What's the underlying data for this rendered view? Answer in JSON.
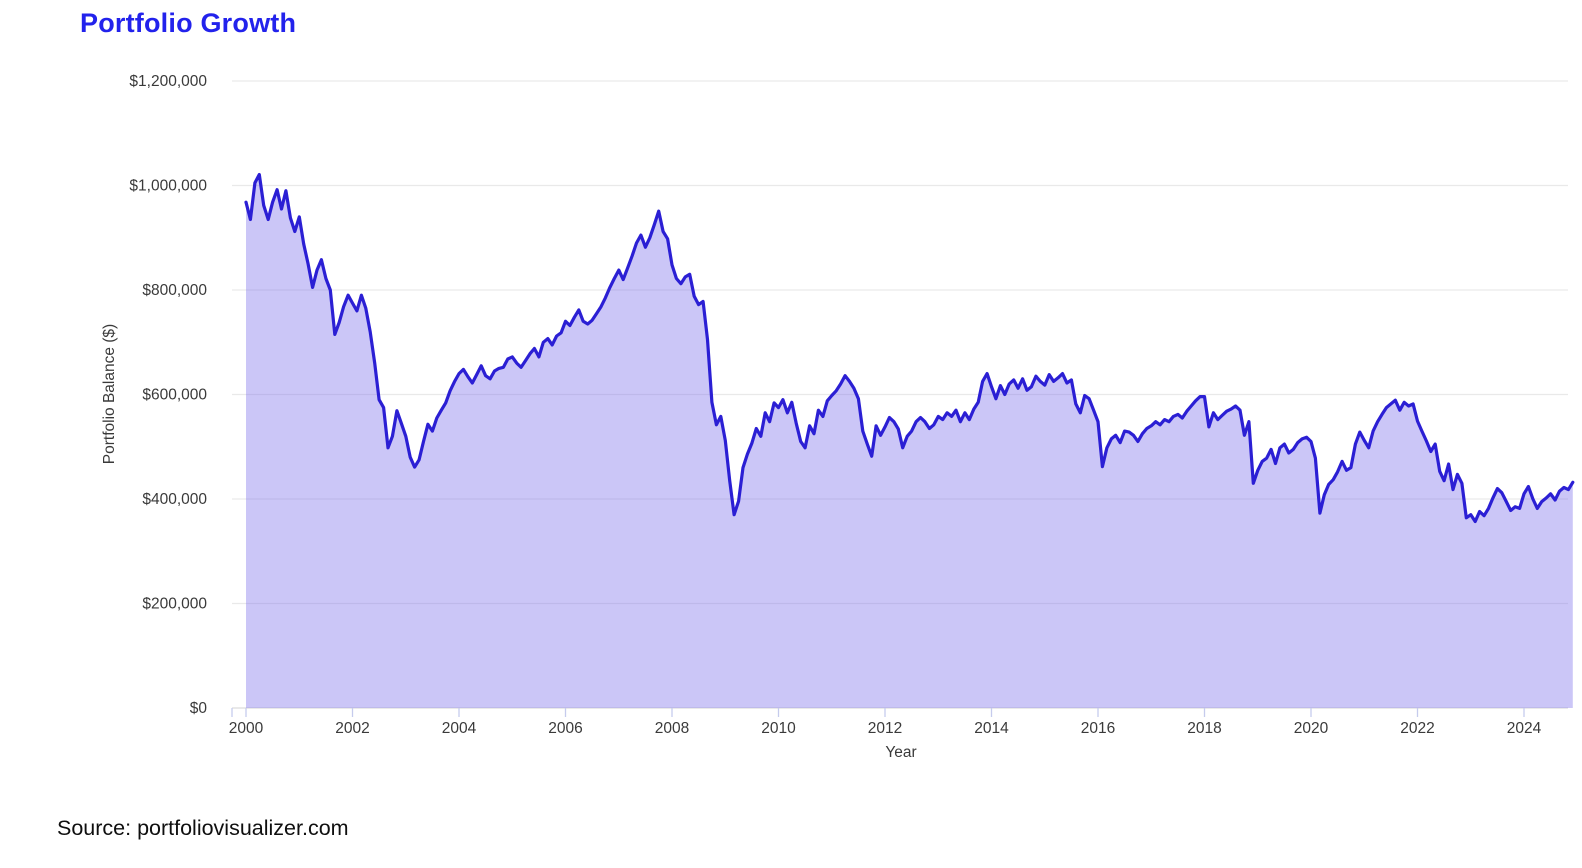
{
  "title": "Portfolio Growth",
  "source": "Source: portfoliovisualizer.com",
  "colors": {
    "title": "#2222ec",
    "line": "#2b1fd4",
    "fill": "rgba(130,120,235,0.42)",
    "grid": "#e9e9e9",
    "baseline": "#dcdcdc",
    "tick": "#c6cbed",
    "label": "#3a3a3a",
    "source_text": "#0f0f0f"
  },
  "chart_data": {
    "type": "area",
    "title": "Portfolio Growth",
    "xlabel": "Year",
    "ylabel": "Portfolio Balance ($)",
    "x_start_year": 2000,
    "x_step_months": 1,
    "xlim": [
      2000,
      2025
    ],
    "ylim": [
      0,
      1200000
    ],
    "grid": true,
    "legend": "none",
    "y_ticks": [
      {
        "value": 0,
        "label": "$0"
      },
      {
        "value": 200000,
        "label": "$200,000"
      },
      {
        "value": 400000,
        "label": "$400,000"
      },
      {
        "value": 600000,
        "label": "$600,000"
      },
      {
        "value": 800000,
        "label": "$800,000"
      },
      {
        "value": 1000000,
        "label": "$1,000,000"
      },
      {
        "value": 1200000,
        "label": "$1,200,000"
      }
    ],
    "x_ticks": [
      {
        "value": 2000,
        "label": "2000"
      },
      {
        "value": 2002,
        "label": "2002"
      },
      {
        "value": 2004,
        "label": "2004"
      },
      {
        "value": 2006,
        "label": "2006"
      },
      {
        "value": 2008,
        "label": "2008"
      },
      {
        "value": 2010,
        "label": "2010"
      },
      {
        "value": 2012,
        "label": "2012"
      },
      {
        "value": 2014,
        "label": "2014"
      },
      {
        "value": 2016,
        "label": "2016"
      },
      {
        "value": 2018,
        "label": "2018"
      },
      {
        "value": 2020,
        "label": "2020"
      },
      {
        "value": 2022,
        "label": "2022"
      },
      {
        "value": 2024,
        "label": "2024"
      }
    ],
    "values": [
      968000,
      935000,
      1005000,
      1021000,
      962000,
      935000,
      968000,
      992000,
      955000,
      990000,
      938000,
      912000,
      940000,
      888000,
      850000,
      805000,
      838000,
      858000,
      822000,
      800000,
      715000,
      738000,
      768000,
      790000,
      775000,
      760000,
      790000,
      765000,
      720000,
      660000,
      590000,
      575000,
      498000,
      520000,
      569000,
      545000,
      520000,
      480000,
      461000,
      475000,
      510000,
      543000,
      530000,
      555000,
      570000,
      584000,
      607000,
      625000,
      640000,
      648000,
      634000,
      622000,
      638000,
      655000,
      636000,
      630000,
      645000,
      650000,
      652000,
      668000,
      672000,
      660000,
      652000,
      665000,
      678000,
      688000,
      672000,
      700000,
      707000,
      695000,
      712000,
      718000,
      740000,
      732000,
      748000,
      762000,
      740000,
      735000,
      742000,
      755000,
      768000,
      785000,
      805000,
      822000,
      838000,
      820000,
      842000,
      865000,
      890000,
      905000,
      882000,
      900000,
      925000,
      951000,
      912000,
      898000,
      848000,
      822000,
      812000,
      825000,
      830000,
      788000,
      772000,
      778000,
      705000,
      585000,
      542000,
      558000,
      512000,
      435000,
      370000,
      396000,
      460000,
      486000,
      507000,
      535000,
      520000,
      565000,
      548000,
      584000,
      575000,
      590000,
      565000,
      585000,
      545000,
      510000,
      498000,
      540000,
      525000,
      570000,
      558000,
      588000,
      598000,
      607000,
      620000,
      636000,
      625000,
      612000,
      592000,
      530000,
      505000,
      482000,
      540000,
      522000,
      538000,
      556000,
      548000,
      534000,
      498000,
      520000,
      530000,
      548000,
      556000,
      548000,
      535000,
      542000,
      558000,
      552000,
      565000,
      558000,
      570000,
      548000,
      565000,
      552000,
      572000,
      585000,
      625000,
      640000,
      615000,
      592000,
      617000,
      600000,
      620000,
      628000,
      612000,
      630000,
      608000,
      615000,
      635000,
      625000,
      618000,
      638000,
      625000,
      632000,
      640000,
      622000,
      628000,
      582000,
      565000,
      598000,
      592000,
      570000,
      548000,
      462000,
      498000,
      515000,
      522000,
      508000,
      530000,
      528000,
      522000,
      510000,
      525000,
      535000,
      540000,
      548000,
      542000,
      552000,
      548000,
      558000,
      562000,
      555000,
      568000,
      578000,
      588000,
      596000,
      596000,
      538000,
      565000,
      552000,
      560000,
      568000,
      572000,
      578000,
      570000,
      522000,
      548000,
      430000,
      455000,
      472000,
      478000,
      495000,
      468000,
      498000,
      505000,
      488000,
      495000,
      508000,
      515000,
      518000,
      510000,
      478000,
      373000,
      408000,
      428000,
      437000,
      452000,
      472000,
      455000,
      460000,
      505000,
      528000,
      512000,
      498000,
      530000,
      548000,
      562000,
      575000,
      582000,
      589000,
      570000,
      585000,
      578000,
      582000,
      549000,
      530000,
      511000,
      491000,
      505000,
      453000,
      435000,
      467000,
      418000,
      447000,
      430000,
      364000,
      370000,
      357000,
      376000,
      368000,
      382000,
      402000,
      420000,
      412000,
      395000,
      378000,
      385000,
      382000,
      410000,
      424000,
      400000,
      382000,
      395000,
      402000,
      410000,
      398000,
      415000,
      422000,
      418000,
      432000
    ]
  }
}
